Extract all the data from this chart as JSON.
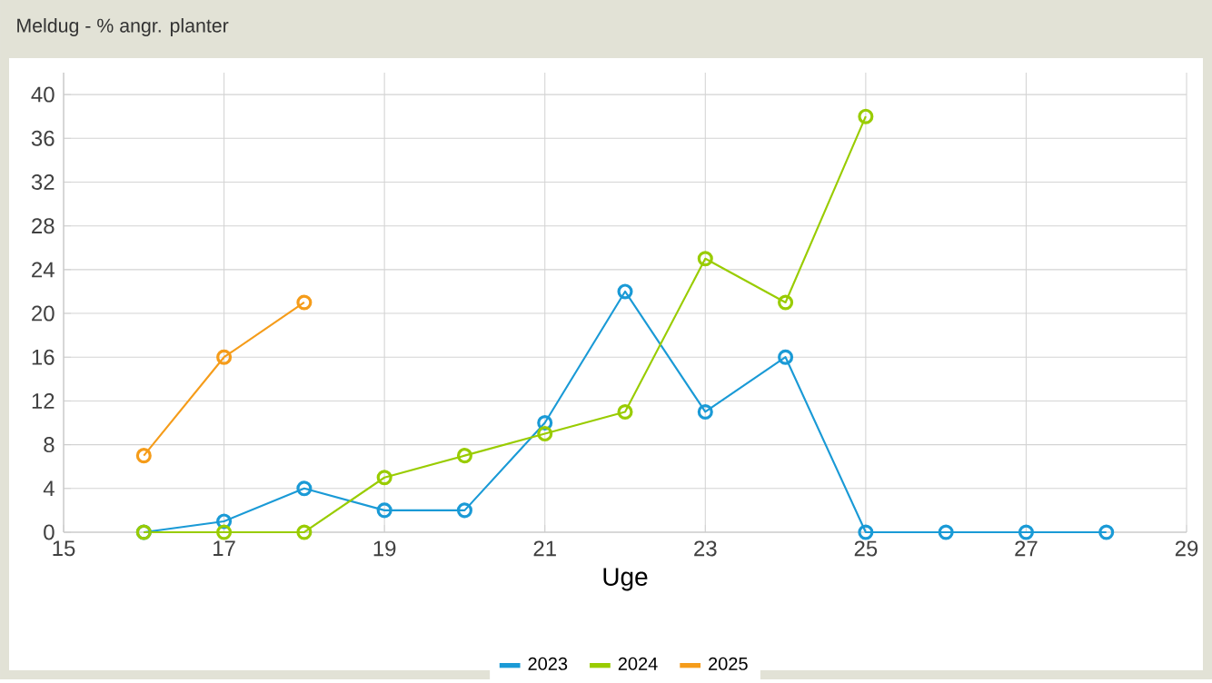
{
  "chart_data": {
    "type": "line",
    "title": "Meldug - % angr. planter",
    "xlabel": "Uge",
    "series": [
      {
        "name": "2023",
        "color": "#1a9ad6",
        "x": [
          16,
          17,
          18,
          19,
          20,
          21,
          22,
          23,
          24,
          25,
          26,
          27,
          28
        ],
        "values": [
          0,
          1,
          4,
          2,
          2,
          10,
          22,
          11,
          16,
          0,
          0,
          0,
          0
        ]
      },
      {
        "name": "2024",
        "color": "#99cc00",
        "x": [
          16,
          17,
          18,
          19,
          20,
          21,
          22,
          23,
          24,
          25
        ],
        "values": [
          0,
          0,
          0,
          5,
          7,
          9,
          11,
          25,
          21,
          38
        ]
      },
      {
        "name": "2025",
        "color": "#f59c1a",
        "x": [
          16,
          17,
          18
        ],
        "values": [
          7,
          16,
          21
        ]
      }
    ],
    "xlim": [
      15,
      29
    ],
    "xticks": [
      15,
      17,
      19,
      21,
      23,
      25,
      27,
      29
    ],
    "ylim": [
      0,
      42
    ],
    "yticks": [
      0,
      4,
      8,
      12,
      16,
      20,
      24,
      28,
      32,
      36,
      40
    ],
    "grid": true,
    "legend": "bottom",
    "marker": "circle",
    "line_style": "solid"
  }
}
